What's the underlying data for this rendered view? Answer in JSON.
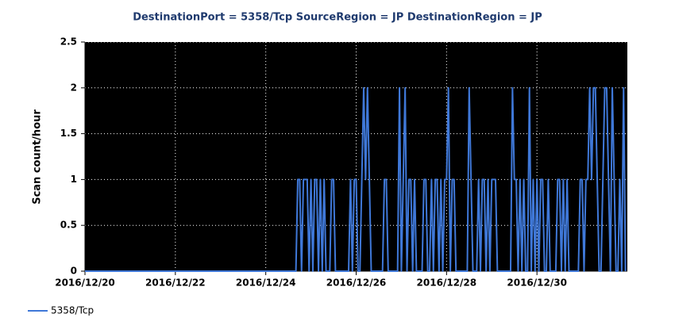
{
  "chart_data": {
    "type": "line",
    "title": "DestinationPort = 5358/Tcp SourceRegion = JP DestinationRegion = JP",
    "y_label": "Scan count/hour",
    "categories": [
      "2016/12/20",
      null,
      null,
      null,
      null,
      null,
      null,
      null,
      null,
      null,
      null,
      null,
      null,
      null,
      null,
      null,
      null,
      null,
      null,
      null,
      null,
      null,
      null,
      null,
      null,
      null,
      null,
      null,
      null,
      null,
      null,
      null,
      null,
      null,
      null,
      null,
      null,
      null,
      null,
      null,
      null,
      null,
      null,
      null,
      null,
      null,
      null,
      null,
      "2016/12/22",
      null,
      null,
      null,
      null,
      null,
      null,
      null,
      null,
      null,
      null,
      null,
      null,
      null,
      null,
      null,
      null,
      null,
      null,
      null,
      null,
      null,
      null,
      null,
      null,
      null,
      null,
      null,
      null,
      null,
      null,
      null,
      null,
      null,
      null,
      null,
      null,
      null,
      null,
      null,
      null,
      null,
      null,
      null,
      null,
      null,
      null,
      null,
      "2016/12/24",
      null,
      null,
      null,
      null,
      null,
      null,
      null,
      null,
      null,
      null,
      null,
      null,
      null,
      null,
      null,
      null,
      null,
      null,
      null,
      null,
      null,
      null,
      null,
      null,
      null,
      null,
      null,
      null,
      null,
      null,
      null,
      null,
      null,
      null,
      null,
      null,
      null,
      null,
      null,
      null,
      null,
      null,
      null,
      null,
      null,
      null,
      null,
      "2016/12/26",
      null,
      null,
      null,
      null,
      null,
      null,
      null,
      null,
      null,
      null,
      null,
      null,
      null,
      null,
      null,
      null,
      null,
      null,
      null,
      null,
      null,
      null,
      null,
      null,
      null,
      null,
      null,
      null,
      null,
      null,
      null,
      null,
      null,
      null,
      null,
      null,
      null,
      null,
      null,
      null,
      null,
      null,
      null,
      null,
      null,
      null,
      null,
      "2016/12/28",
      null,
      null,
      null,
      null,
      null,
      null,
      null,
      null,
      null,
      null,
      null,
      null,
      null,
      null,
      null,
      null,
      null,
      null,
      null,
      null,
      null,
      null,
      null,
      null,
      null,
      null,
      null,
      null,
      null,
      null,
      null,
      null,
      null,
      null,
      null,
      null,
      null,
      null,
      null,
      null,
      null,
      null,
      null,
      null,
      null,
      null,
      null,
      "2016/12/30",
      null,
      null,
      null,
      null,
      null,
      null,
      null,
      null,
      null,
      null,
      null,
      null,
      null,
      null,
      null,
      null,
      null,
      null,
      null,
      null,
      null,
      null,
      null,
      null,
      null,
      null,
      null,
      null,
      null,
      null,
      null,
      null,
      null,
      null,
      null,
      null,
      null,
      null,
      null,
      null,
      null,
      null,
      null,
      null,
      null,
      null,
      null
    ],
    "series": [
      {
        "name": "5358/Tcp",
        "color": "#3f78d8",
        "values": [
          0,
          0,
          0,
          0,
          0,
          0,
          0,
          0,
          0,
          0,
          0,
          0,
          0,
          0,
          0,
          0,
          0,
          0,
          0,
          0,
          0,
          0,
          0,
          0,
          0,
          0,
          0,
          0,
          0,
          0,
          0,
          0,
          0,
          0,
          0,
          0,
          0,
          0,
          0,
          0,
          0,
          0,
          0,
          0,
          0,
          0,
          0,
          0,
          0,
          0,
          0,
          0,
          0,
          0,
          0,
          0,
          0,
          0,
          0,
          0,
          0,
          0,
          0,
          0,
          0,
          0,
          0,
          0,
          0,
          0,
          0,
          0,
          0,
          0,
          0,
          0,
          0,
          0,
          0,
          0,
          0,
          0,
          0,
          0,
          0,
          0,
          0,
          0,
          0,
          0,
          0,
          0,
          0,
          0,
          0,
          0,
          0,
          0,
          0,
          0,
          0,
          0,
          0,
          0,
          0,
          0,
          0,
          0,
          0,
          0,
          0,
          0,
          0,
          1,
          1,
          0,
          1,
          1,
          1,
          0,
          1,
          0,
          1,
          1,
          0,
          1,
          0,
          1,
          0,
          0,
          0,
          1,
          1,
          0,
          0,
          0,
          0,
          0,
          0,
          0,
          0,
          1,
          0,
          1,
          1,
          0,
          0,
          1,
          2,
          1,
          2,
          1,
          0,
          0,
          0,
          0,
          0,
          0,
          0,
          1,
          1,
          0,
          0,
          0,
          0,
          0,
          0,
          2,
          0,
          1,
          2,
          0,
          1,
          1,
          0,
          1,
          0,
          0,
          0,
          0,
          1,
          1,
          0,
          0,
          1,
          0,
          1,
          1,
          0,
          1,
          0,
          1,
          1,
          2,
          0,
          1,
          1,
          0,
          0,
          0,
          0,
          0,
          0,
          0,
          2,
          1,
          0,
          0,
          0,
          1,
          0,
          1,
          1,
          0,
          1,
          0,
          1,
          1,
          1,
          0,
          0,
          0,
          0,
          0,
          0,
          0,
          0,
          2,
          1,
          1,
          0,
          1,
          0,
          1,
          0,
          0,
          2,
          0,
          1,
          0,
          1,
          0,
          1,
          1,
          0,
          0,
          1,
          0,
          0,
          0,
          0,
          1,
          1,
          0,
          1,
          0,
          1,
          0,
          0,
          0,
          0,
          0,
          0,
          1,
          1,
          0,
          1,
          1,
          2,
          1,
          2,
          2,
          1,
          0,
          0,
          1,
          2,
          2,
          1,
          0,
          2,
          1,
          0,
          0,
          1,
          0,
          2,
          0
        ]
      }
    ],
    "ylim": [
      0,
      2.5
    ],
    "yticks": [
      0,
      0.5,
      1,
      1.5,
      2,
      2.5
    ],
    "grid": true,
    "legend": "bottom-left"
  }
}
